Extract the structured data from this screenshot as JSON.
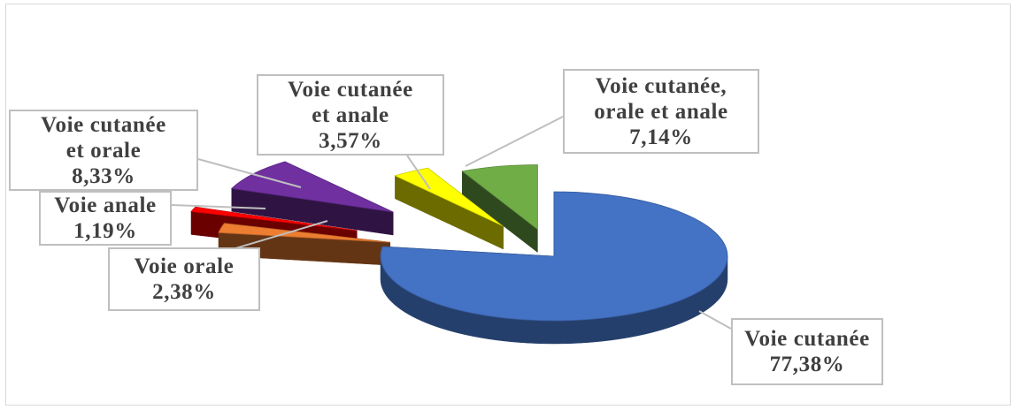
{
  "chart_data": {
    "type": "pie",
    "style": "3d-exploded",
    "slices": [
      {
        "label_lines": [
          "Voie cutanée"
        ],
        "value_text": "77,38%",
        "value": 77.38,
        "color": "#4472c4"
      },
      {
        "label_lines": [
          "Voie orale"
        ],
        "value_text": "2,38%",
        "value": 2.38,
        "color": "#ed7d31"
      },
      {
        "label_lines": [
          "Voie anale"
        ],
        "value_text": "1,19%",
        "value": 1.19,
        "color": "#ff0000"
      },
      {
        "label_lines": [
          "Voie cutanée",
          "et orale"
        ],
        "value_text": "8,33%",
        "value": 8.33,
        "color": "#7030a0"
      },
      {
        "label_lines": [
          "Voie cutanée",
          "et anale"
        ],
        "value_text": "3,57%",
        "value": 3.57,
        "color": "#ffff00"
      },
      {
        "label_lines": [
          "Voie cutanée,",
          "orale et anale"
        ],
        "value_text": "7,14%",
        "value": 7.14,
        "color": "#70ad47"
      }
    ]
  }
}
